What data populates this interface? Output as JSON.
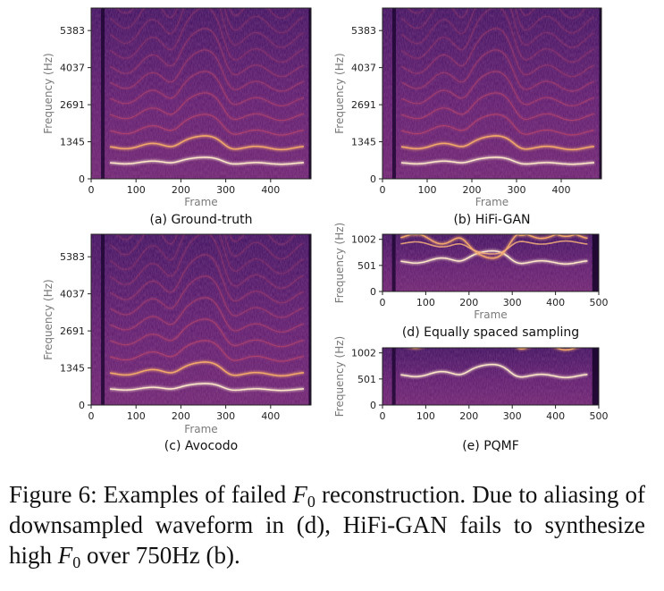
{
  "panels": [
    {
      "id": "a",
      "caption": "(a) Ground-truth",
      "ylabel": "Frequency (Hz)",
      "xlabel": "Frame",
      "yticks": [
        "0",
        "1345",
        "2691",
        "4037",
        "5383"
      ],
      "xticks": [
        "0",
        "100",
        "200",
        "300",
        "400"
      ],
      "variant": "ground-truth"
    },
    {
      "id": "b",
      "caption": "(b) HiFi-GAN",
      "ylabel": "Frequency (Hz)",
      "xlabel": "Frame",
      "yticks": [
        "0",
        "1345",
        "2691",
        "4037",
        "5383"
      ],
      "xticks": [
        "0",
        "100",
        "200",
        "300",
        "400"
      ],
      "variant": "hifigan"
    },
    {
      "id": "c",
      "caption": "(c) Avocodo",
      "ylabel": "Frequency (Hz)",
      "xlabel": "Frame",
      "yticks": [
        "0",
        "1345",
        "2691",
        "4037",
        "5383"
      ],
      "xticks": [
        "0",
        "100",
        "200",
        "300",
        "400"
      ],
      "variant": "avocodo"
    },
    {
      "id": "d",
      "caption": "(d) Equally spaced sampling",
      "ylabel": "Frequency (Hz)",
      "xlabel": "Frame",
      "yticks": [
        "0",
        "501",
        "1002"
      ],
      "xticks": [
        "0",
        "100",
        "200",
        "300",
        "400",
        "500"
      ],
      "variant": "equal"
    },
    {
      "id": "e",
      "caption": "(e) PQMF",
      "ylabel": "Frequency (Hz)",
      "xlabel": "",
      "yticks": [
        "0",
        "501",
        "1002"
      ],
      "xticks": [
        "0",
        "100",
        "200",
        "300",
        "400",
        "500"
      ],
      "variant": "pqmf"
    }
  ],
  "caption": {
    "label": "Figure 6:",
    "t1": "Examples of failed ",
    "f0_sym": "F",
    "f0_sub": "0",
    "t2": " reconstruction. Due to aliasing of downsampled waveform in (d), HiFi-GAN fails to synthesize high ",
    "t3": " over 750Hz (b)."
  },
  "colors": {
    "background": "#38105a",
    "harmonic_dim": "#c24a6c",
    "harmonic_bright": "#fde7c9",
    "axis": "#222222",
    "tick_text": "#222222",
    "axis_label": "#7a7a7a"
  }
}
